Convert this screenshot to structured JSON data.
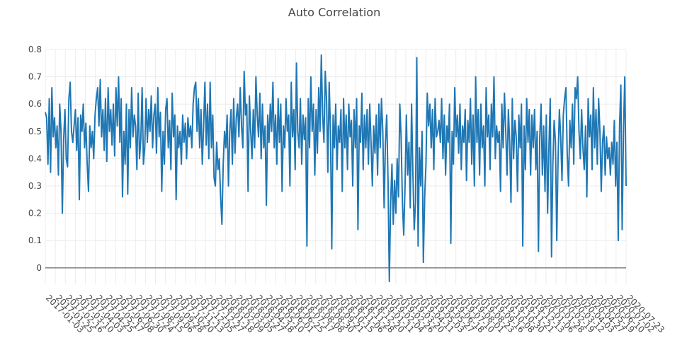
{
  "chart_data": {
    "type": "line",
    "title": "Auto Correlation",
    "xlabel": "",
    "ylabel": "",
    "x_start": "2017-01-03",
    "x_end": "2020-07-23",
    "xlim": [
      "2017-01-03",
      "2020-07-23"
    ],
    "ylim": [
      -0.06,
      0.8
    ],
    "y_ticks": [
      0,
      0.1,
      0.2,
      0.3,
      0.4,
      0.5,
      0.6,
      0.7,
      0.8
    ],
    "y_tick_labels": [
      "0",
      "0.1",
      "0.2",
      "0.3",
      "0.4",
      "0.5",
      "0.6",
      "0.7",
      "0.8"
    ],
    "x_tick_labels": [
      "2017-01-03",
      "2017-01-25",
      "2017-02-16",
      "2017-03-10",
      "2017-04-03",
      "2017-04-25",
      "2017-05-17",
      "2017-06-08",
      "2017-06-30",
      "2017-07-24",
      "2017-08-15",
      "2017-09-06",
      "2017-09-28",
      "2017-10-20",
      "2017-11-13",
      "2017-12-05",
      "2017-12-27",
      "2018-01-18",
      "2018-02-09",
      "2018-03-05",
      "2018-03-27",
      "2018-04-18",
      "2018-05-10",
      "2018-06-01",
      "2018-06-25",
      "2018-07-17",
      "2018-08-08",
      "2018-08-30",
      "2018-09-21",
      "2018-10-15",
      "2018-11-06",
      "2018-11-28",
      "2018-12-20",
      "2019-01-11",
      "2019-02-04",
      "2019-02-26",
      "2019-03-20",
      "2019-04-11",
      "2019-05-03",
      "2019-05-27",
      "2019-06-18",
      "2019-07-10",
      "2019-08-01",
      "2019-08-23",
      "2019-09-16",
      "2019-10-08",
      "2019-10-30",
      "2019-11-21",
      "2019-12-13",
      "2020-01-06",
      "2020-01-28",
      "2020-02-19",
      "2020-03-12",
      "2020-04-03",
      "2020-04-27",
      "2020-05-19",
      "2020-06-10",
      "2020-07-02",
      "2020-07-23"
    ],
    "grid": true,
    "zero_line": true,
    "series": [
      {
        "color": "#1f77b4",
        "values": [
          0.57,
          0.55,
          0.38,
          0.62,
          0.35,
          0.66,
          0.48,
          0.55,
          0.44,
          0.52,
          0.34,
          0.6,
          0.5,
          0.2,
          0.47,
          0.58,
          0.4,
          0.37,
          0.62,
          0.68,
          0.5,
          0.46,
          0.52,
          0.58,
          0.43,
          0.55,
          0.25,
          0.56,
          0.5,
          0.6,
          0.44,
          0.53,
          0.38,
          0.28,
          0.52,
          0.44,
          0.5,
          0.4,
          0.56,
          0.62,
          0.66,
          0.52,
          0.69,
          0.48,
          0.58,
          0.43,
          0.62,
          0.39,
          0.66,
          0.5,
          0.58,
          0.45,
          0.6,
          0.41,
          0.66,
          0.52,
          0.7,
          0.46,
          0.62,
          0.26,
          0.5,
          0.38,
          0.6,
          0.27,
          0.58,
          0.44,
          0.66,
          0.48,
          0.56,
          0.52,
          0.36,
          0.64,
          0.4,
          0.47,
          0.66,
          0.38,
          0.44,
          0.62,
          0.46,
          0.58,
          0.5,
          0.63,
          0.44,
          0.56,
          0.6,
          0.42,
          0.66,
          0.48,
          0.57,
          0.28,
          0.5,
          0.38,
          0.58,
          0.62,
          0.44,
          0.54,
          0.36,
          0.64,
          0.48,
          0.56,
          0.25,
          0.52,
          0.44,
          0.5,
          0.38,
          0.56,
          0.46,
          0.53,
          0.4,
          0.55,
          0.48,
          0.52,
          0.44,
          0.6,
          0.66,
          0.68,
          0.5,
          0.62,
          0.44,
          0.58,
          0.38,
          0.52,
          0.68,
          0.45,
          0.6,
          0.4,
          0.68,
          0.44,
          0.56,
          0.33,
          0.3,
          0.46,
          0.36,
          0.4,
          0.26,
          0.16,
          0.38,
          0.5,
          0.44,
          0.56,
          0.3,
          0.5,
          0.58,
          0.38,
          0.62,
          0.42,
          0.55,
          0.6,
          0.48,
          0.66,
          0.52,
          0.44,
          0.72,
          0.56,
          0.6,
          0.28,
          0.63,
          0.5,
          0.4,
          0.58,
          0.44,
          0.7,
          0.56,
          0.48,
          0.64,
          0.4,
          0.6,
          0.44,
          0.52,
          0.23,
          0.56,
          0.46,
          0.6,
          0.5,
          0.68,
          0.44,
          0.56,
          0.38,
          0.62,
          0.46,
          0.6,
          0.28,
          0.52,
          0.44,
          0.62,
          0.5,
          0.56,
          0.3,
          0.68,
          0.48,
          0.58,
          0.36,
          0.75,
          0.5,
          0.44,
          0.62,
          0.38,
          0.56,
          0.47,
          0.55,
          0.08,
          0.62,
          0.44,
          0.7,
          0.5,
          0.6,
          0.34,
          0.58,
          0.42,
          0.66,
          0.5,
          0.78,
          0.56,
          0.46,
          0.72,
          0.62,
          0.35,
          0.68,
          0.5,
          0.07,
          0.56,
          0.44,
          0.6,
          0.36,
          0.52,
          0.46,
          0.58,
          0.28,
          0.62,
          0.44,
          0.56,
          0.36,
          0.6,
          0.48,
          0.54,
          0.3,
          0.58,
          0.44,
          0.62,
          0.14,
          0.52,
          0.46,
          0.64,
          0.36,
          0.56,
          0.44,
          0.58,
          0.38,
          0.6,
          0.46,
          0.3,
          0.52,
          0.42,
          0.56,
          0.34,
          0.6,
          0.44,
          0.62,
          0.5,
          0.22,
          0.46,
          0.56,
          0.32,
          -0.05,
          0.24,
          0.38,
          0.16,
          0.32,
          0.2,
          0.4,
          0.26,
          0.6,
          0.48,
          0.24,
          0.12,
          0.3,
          0.56,
          0.34,
          0.46,
          0.22,
          0.6,
          0.35,
          0.14,
          0.24,
          0.77,
          0.08,
          0.44,
          0.3,
          0.5,
          0.02,
          0.26,
          0.38,
          0.64,
          0.52,
          0.6,
          0.44,
          0.58,
          0.36,
          0.62,
          0.48,
          0.5,
          0.54,
          0.46,
          0.62,
          0.4,
          0.56,
          0.34,
          0.52,
          0.46,
          0.6,
          0.09,
          0.5,
          0.38,
          0.66,
          0.48,
          0.56,
          0.42,
          0.6,
          0.36,
          0.52,
          0.46,
          0.58,
          0.32,
          0.54,
          0.46,
          0.62,
          0.38,
          0.56,
          0.3,
          0.7,
          0.46,
          0.58,
          0.34,
          0.6,
          0.44,
          0.52,
          0.3,
          0.66,
          0.48,
          0.56,
          0.36,
          0.6,
          0.48,
          0.7,
          0.4,
          0.52,
          0.46,
          0.5,
          0.28,
          0.6,
          0.44,
          0.64,
          0.5,
          0.34,
          0.58,
          0.46,
          0.24,
          0.62,
          0.4,
          0.54,
          0.48,
          0.28,
          0.56,
          0.44,
          0.6,
          0.08,
          0.52,
          0.36,
          0.62,
          0.46,
          0.58,
          0.34,
          0.56,
          0.44,
          0.58,
          0.36,
          0.5,
          0.06,
          0.48,
          0.6,
          0.34,
          0.52,
          0.28,
          0.56,
          0.2,
          0.44,
          0.62,
          0.04,
          0.38,
          0.54,
          0.46,
          0.1,
          0.4,
          0.58,
          0.48,
          0.32,
          0.56,
          0.62,
          0.66,
          0.42,
          0.3,
          0.54,
          0.44,
          0.6,
          0.38,
          0.66,
          0.62,
          0.7,
          0.5,
          0.4,
          0.58,
          0.44,
          0.36,
          0.52,
          0.26,
          0.62,
          0.48,
          0.56,
          0.36,
          0.66,
          0.44,
          0.58,
          0.38,
          0.62,
          0.5,
          0.28,
          0.46,
          0.52,
          0.34,
          0.48,
          0.4,
          0.44,
          0.34,
          0.46,
          0.38,
          0.54,
          0.3,
          0.46,
          0.1,
          0.52,
          0.67,
          0.14,
          0.5,
          0.7,
          0.3
        ]
      }
    ]
  }
}
